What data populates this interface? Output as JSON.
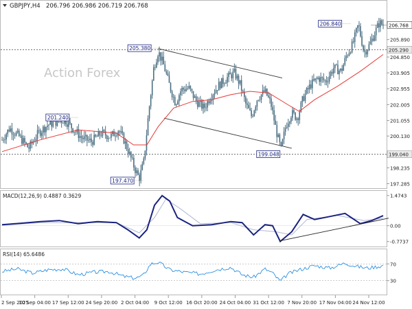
{
  "header": {
    "symbol": "GBPJPY,H4",
    "ohlc": "206.796 206.986 206.719 206.768"
  },
  "watermark": "Action Forex",
  "chart_data": [
    {
      "type": "candlestick",
      "title": "GBPJPY,H4 206.796 206.986 206.719 206.768",
      "y_ticks": [
        "206.840",
        "205.890",
        "204.850",
        "203.905",
        "202.955",
        "202.005",
        "201.055",
        "200.130",
        "199.180",
        "198.235",
        "197.285"
      ],
      "ylim": [
        197.1,
        207.6
      ],
      "last_price": "206.768",
      "levels": [
        {
          "value": 205.29,
          "label": "205.290"
        },
        {
          "value": 199.04,
          "label": "199.040"
        }
      ],
      "annotations": [
        {
          "label": "201.240",
          "value": 201.24
        },
        {
          "label": "197.470",
          "value": 197.47
        },
        {
          "label": "205.380",
          "value": 205.38
        },
        {
          "label": "199.048",
          "value": 199.048
        },
        {
          "label": "206.840",
          "value": 206.84
        }
      ],
      "price_path": [
        {
          "t": 0.0,
          "v": 199.9
        },
        {
          "t": 0.02,
          "v": 200.6
        },
        {
          "t": 0.045,
          "v": 200.1
        },
        {
          "t": 0.07,
          "v": 199.4
        },
        {
          "t": 0.095,
          "v": 200.3
        },
        {
          "t": 0.12,
          "v": 200.8
        },
        {
          "t": 0.145,
          "v": 201.0
        },
        {
          "t": 0.165,
          "v": 201.1
        },
        {
          "t": 0.185,
          "v": 200.6
        },
        {
          "t": 0.21,
          "v": 200.0
        },
        {
          "t": 0.235,
          "v": 199.8
        },
        {
          "t": 0.26,
          "v": 200.3
        },
        {
          "t": 0.285,
          "v": 200.1
        },
        {
          "t": 0.305,
          "v": 200.5
        },
        {
          "t": 0.32,
          "v": 199.9
        },
        {
          "t": 0.335,
          "v": 199.0
        },
        {
          "t": 0.348,
          "v": 198.2
        },
        {
          "t": 0.36,
          "v": 197.6
        },
        {
          "t": 0.372,
          "v": 198.6
        },
        {
          "t": 0.385,
          "v": 201.6
        },
        {
          "t": 0.398,
          "v": 204.2
        },
        {
          "t": 0.41,
          "v": 205.2
        },
        {
          "t": 0.425,
          "v": 204.3
        },
        {
          "t": 0.44,
          "v": 203.1
        },
        {
          "t": 0.455,
          "v": 202.1
        },
        {
          "t": 0.47,
          "v": 202.9
        },
        {
          "t": 0.49,
          "v": 203.0
        },
        {
          "t": 0.51,
          "v": 202.2
        },
        {
          "t": 0.53,
          "v": 201.8
        },
        {
          "t": 0.55,
          "v": 202.6
        },
        {
          "t": 0.57,
          "v": 203.2
        },
        {
          "t": 0.59,
          "v": 203.6
        },
        {
          "t": 0.61,
          "v": 203.9
        },
        {
          "t": 0.625,
          "v": 203.2
        },
        {
          "t": 0.64,
          "v": 202.0
        },
        {
          "t": 0.655,
          "v": 201.3
        },
        {
          "t": 0.67,
          "v": 202.4
        },
        {
          "t": 0.69,
          "v": 202.8
        },
        {
          "t": 0.705,
          "v": 202.1
        },
        {
          "t": 0.72,
          "v": 200.4
        },
        {
          "t": 0.732,
          "v": 199.3
        },
        {
          "t": 0.745,
          "v": 200.8
        },
        {
          "t": 0.76,
          "v": 201.5
        },
        {
          "t": 0.775,
          "v": 201.2
        },
        {
          "t": 0.79,
          "v": 202.4
        },
        {
          "t": 0.81,
          "v": 203.2
        },
        {
          "t": 0.83,
          "v": 203.6
        },
        {
          "t": 0.85,
          "v": 203.4
        },
        {
          "t": 0.87,
          "v": 204.2
        },
        {
          "t": 0.89,
          "v": 204.0
        },
        {
          "t": 0.905,
          "v": 205.0
        },
        {
          "t": 0.92,
          "v": 205.6
        },
        {
          "t": 0.935,
          "v": 206.8
        },
        {
          "t": 0.95,
          "v": 205.1
        },
        {
          "t": 0.965,
          "v": 205.6
        },
        {
          "t": 0.98,
          "v": 206.4
        },
        {
          "t": 0.99,
          "v": 206.9
        },
        {
          "t": 1.0,
          "v": 206.77
        }
      ],
      "moving_average": [
        {
          "t": 0.0,
          "v": 199.2
        },
        {
          "t": 0.1,
          "v": 199.9
        },
        {
          "t": 0.2,
          "v": 200.5
        },
        {
          "t": 0.3,
          "v": 200.3
        },
        {
          "t": 0.345,
          "v": 199.6
        },
        {
          "t": 0.38,
          "v": 199.6
        },
        {
          "t": 0.41,
          "v": 200.7
        },
        {
          "t": 0.45,
          "v": 201.8
        },
        {
          "t": 0.5,
          "v": 202.2
        },
        {
          "t": 0.55,
          "v": 202.3
        },
        {
          "t": 0.6,
          "v": 202.6
        },
        {
          "t": 0.65,
          "v": 202.8
        },
        {
          "t": 0.7,
          "v": 202.7
        },
        {
          "t": 0.75,
          "v": 202.0
        },
        {
          "t": 0.78,
          "v": 201.6
        },
        {
          "t": 0.82,
          "v": 202.3
        },
        {
          "t": 0.88,
          "v": 203.1
        },
        {
          "t": 0.94,
          "v": 204.0
        },
        {
          "t": 1.0,
          "v": 205.0
        }
      ],
      "channel_lines": [
        {
          "from": {
            "t": 0.41,
            "v": 205.35
          },
          "to": {
            "t": 0.735,
            "v": 203.6
          }
        },
        {
          "from": {
            "t": 0.425,
            "v": 201.2
          },
          "to": {
            "t": 0.76,
            "v": 199.4
          }
        }
      ]
    },
    {
      "type": "line",
      "title": "MACD(12,26,9) 0.4887 0.3629",
      "y_ticks": [
        "1.4743",
        "0.00",
        "-0.7737"
      ],
      "ylim": [
        -0.95,
        1.6
      ],
      "series": [
        {
          "name": "MACD",
          "color": "#1a237e",
          "values": [
            {
              "t": 0.0,
              "v": 0.05
            },
            {
              "t": 0.05,
              "v": 0.12
            },
            {
              "t": 0.1,
              "v": 0.2
            },
            {
              "t": 0.15,
              "v": 0.25
            },
            {
              "t": 0.2,
              "v": 0.1
            },
            {
              "t": 0.25,
              "v": 0.2
            },
            {
              "t": 0.3,
              "v": 0.15
            },
            {
              "t": 0.33,
              "v": -0.2
            },
            {
              "t": 0.36,
              "v": -0.6
            },
            {
              "t": 0.38,
              "v": -0.2
            },
            {
              "t": 0.4,
              "v": 1.0
            },
            {
              "t": 0.42,
              "v": 1.47
            },
            {
              "t": 0.44,
              "v": 1.2
            },
            {
              "t": 0.46,
              "v": 0.4
            },
            {
              "t": 0.5,
              "v": 0.0
            },
            {
              "t": 0.55,
              "v": 0.05
            },
            {
              "t": 0.6,
              "v": 0.2
            },
            {
              "t": 0.63,
              "v": 0.15
            },
            {
              "t": 0.66,
              "v": -0.45
            },
            {
              "t": 0.69,
              "v": 0.05
            },
            {
              "t": 0.71,
              "v": 0.0
            },
            {
              "t": 0.73,
              "v": -0.77
            },
            {
              "t": 0.76,
              "v": -0.3
            },
            {
              "t": 0.79,
              "v": 0.55
            },
            {
              "t": 0.82,
              "v": 0.3
            },
            {
              "t": 0.86,
              "v": 0.45
            },
            {
              "t": 0.9,
              "v": 0.6
            },
            {
              "t": 0.94,
              "v": 0.1
            },
            {
              "t": 0.97,
              "v": 0.25
            },
            {
              "t": 1.0,
              "v": 0.49
            }
          ]
        },
        {
          "name": "Signal",
          "color": "#b0b7d6",
          "values": [
            {
              "t": 0.0,
              "v": 0.02
            },
            {
              "t": 0.1,
              "v": 0.15
            },
            {
              "t": 0.2,
              "v": 0.15
            },
            {
              "t": 0.3,
              "v": 0.15
            },
            {
              "t": 0.36,
              "v": -0.35
            },
            {
              "t": 0.4,
              "v": 0.4
            },
            {
              "t": 0.43,
              "v": 1.3
            },
            {
              "t": 0.47,
              "v": 0.8
            },
            {
              "t": 0.52,
              "v": 0.1
            },
            {
              "t": 0.6,
              "v": 0.15
            },
            {
              "t": 0.66,
              "v": -0.2
            },
            {
              "t": 0.72,
              "v": -0.3
            },
            {
              "t": 0.76,
              "v": -0.45
            },
            {
              "t": 0.8,
              "v": 0.3
            },
            {
              "t": 0.88,
              "v": 0.5
            },
            {
              "t": 0.95,
              "v": 0.25
            },
            {
              "t": 1.0,
              "v": 0.36
            }
          ]
        }
      ],
      "trend_line": {
        "from": {
          "t": 0.73,
          "v": -0.74
        },
        "to": {
          "t": 1.0,
          "v": 0.3
        }
      }
    },
    {
      "type": "line",
      "title": "RSI(14) 65.6486",
      "y_ticks": [
        "70",
        "30"
      ],
      "ylim": [
        0,
        100
      ],
      "levels": [
        70,
        30
      ],
      "series": [
        {
          "name": "RSI(14)",
          "color": "#2b8fe0",
          "values": [
            {
              "t": 0.0,
              "v": 52
            },
            {
              "t": 0.04,
              "v": 58
            },
            {
              "t": 0.08,
              "v": 48
            },
            {
              "t": 0.12,
              "v": 56
            },
            {
              "t": 0.16,
              "v": 58
            },
            {
              "t": 0.2,
              "v": 44
            },
            {
              "t": 0.24,
              "v": 50
            },
            {
              "t": 0.28,
              "v": 52
            },
            {
              "t": 0.32,
              "v": 40
            },
            {
              "t": 0.35,
              "v": 36
            },
            {
              "t": 0.37,
              "v": 42
            },
            {
              "t": 0.39,
              "v": 70
            },
            {
              "t": 0.41,
              "v": 74
            },
            {
              "t": 0.44,
              "v": 56
            },
            {
              "t": 0.48,
              "v": 50
            },
            {
              "t": 0.52,
              "v": 46
            },
            {
              "t": 0.56,
              "v": 56
            },
            {
              "t": 0.6,
              "v": 62
            },
            {
              "t": 0.63,
              "v": 44
            },
            {
              "t": 0.66,
              "v": 38
            },
            {
              "t": 0.69,
              "v": 58
            },
            {
              "t": 0.71,
              "v": 48
            },
            {
              "t": 0.73,
              "v": 28
            },
            {
              "t": 0.75,
              "v": 46
            },
            {
              "t": 0.78,
              "v": 56
            },
            {
              "t": 0.82,
              "v": 66
            },
            {
              "t": 0.86,
              "v": 60
            },
            {
              "t": 0.9,
              "v": 72
            },
            {
              "t": 0.93,
              "v": 64
            },
            {
              "t": 0.96,
              "v": 60
            },
            {
              "t": 1.0,
              "v": 66
            }
          ]
        }
      ]
    }
  ],
  "x_axis": {
    "ticks": [
      "2 Sep 2025",
      "10 Sep 04:00",
      "17 Sep 12:00",
      "24 Sep 20:00",
      "2 Oct 04:00",
      "9 Oct 12:00",
      "16 Oct 20:00",
      "24 Oct 04:00",
      "31 Oct 12:00",
      "7 Nov 20:00",
      "17 Nov 04:00",
      "24 Nov 12:00"
    ]
  },
  "colors": {
    "candle": "#4a6e82",
    "moving_average": "#e53935",
    "level_line": "#555555",
    "label_border": "#1a237e",
    "label_text": "#1a237e",
    "last_price_bg": "#ffffff",
    "watermark": "#c7c7c7"
  }
}
